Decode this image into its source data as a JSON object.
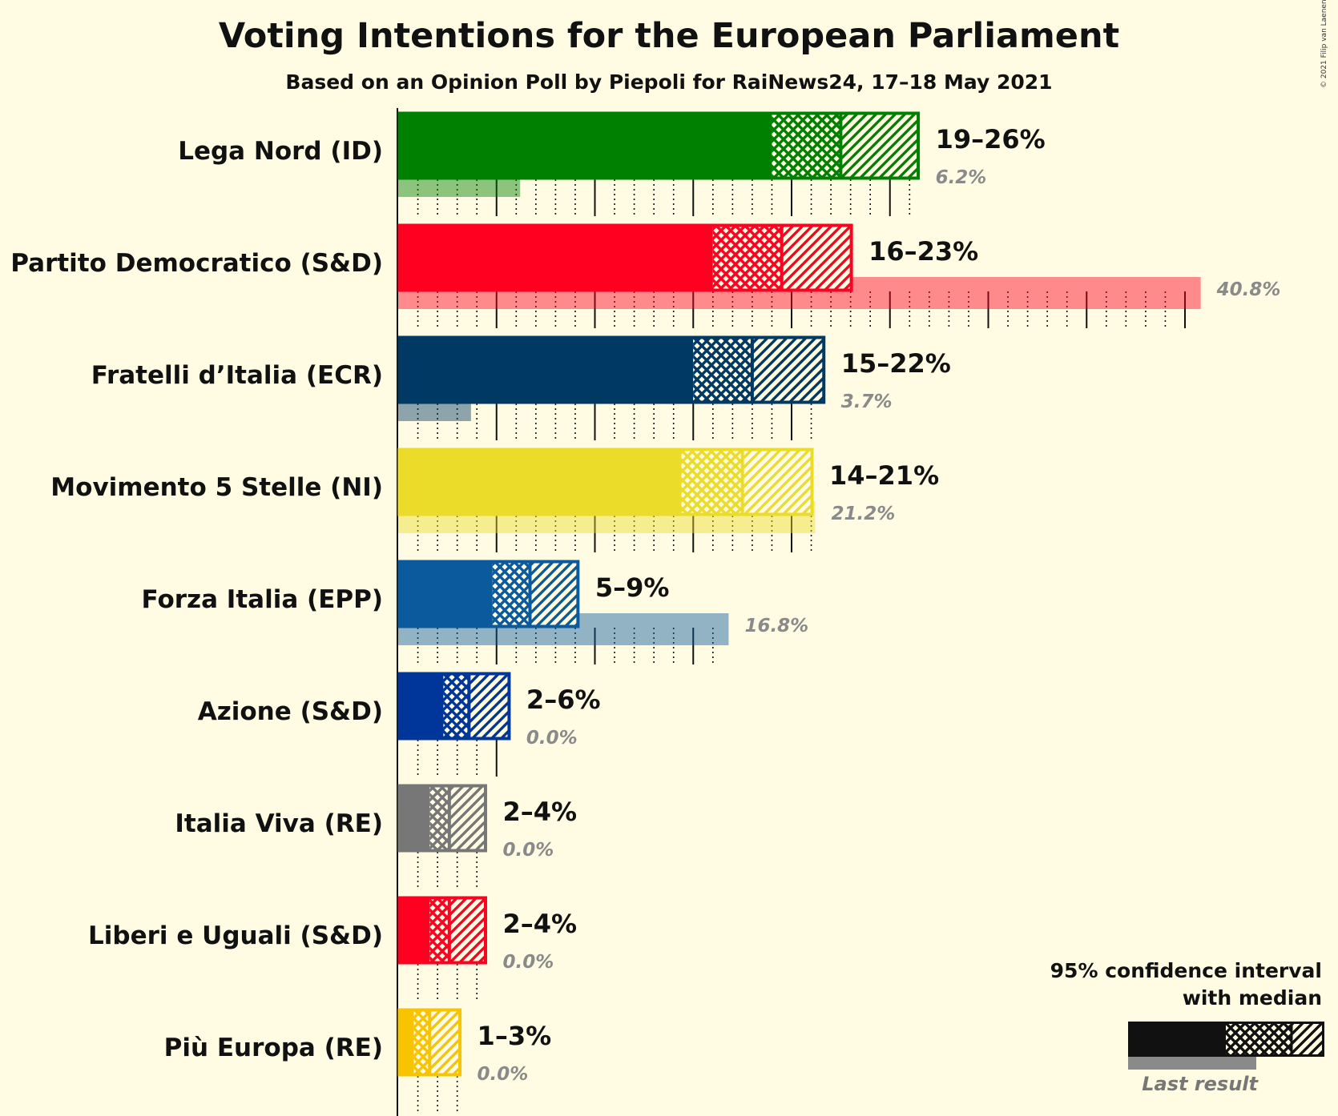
{
  "title": "Voting Intentions for the European Parliament",
  "subtitle": "Based on an Opinion Poll by Piepoli for RaiNews24, 17–18 May 2021",
  "copyright": "© 2021 Filip van Laenen",
  "legend": {
    "title_line1": "95% confidence interval",
    "title_line2": "with median",
    "last_result": "Last result"
  },
  "chart_data": {
    "type": "bar",
    "orientation": "horizontal",
    "xlim": [
      0,
      42
    ],
    "unit": "%",
    "grid": true,
    "parties": [
      {
        "name": "Lega Nord (ID)",
        "color": "#008000",
        "ci_low": 19,
        "median": 22.5,
        "ci_high": 26.5,
        "range_label": "19–26%",
        "last_result": 6.2,
        "last_label": "6.2%"
      },
      {
        "name": "Partito Democratico (S&D)",
        "color": "#FF0020",
        "ci_low": 16,
        "median": 19.5,
        "ci_high": 23.1,
        "range_label": "16–23%",
        "last_result": 40.8,
        "last_label": "40.8%"
      },
      {
        "name": "Fratelli d’Italia (ECR)",
        "color": "#003963",
        "ci_low": 15,
        "median": 18,
        "ci_high": 21.7,
        "range_label": "15–22%",
        "last_result": 3.7,
        "last_label": "3.7%"
      },
      {
        "name": "Movimento 5 Stelle (NI)",
        "color": "#ECDC2A",
        "ci_low": 14.4,
        "median": 17.5,
        "ci_high": 21.1,
        "range_label": "14–21%",
        "last_result": 21.2,
        "last_label": "21.2%"
      },
      {
        "name": "Forza Italia (EPP)",
        "color": "#0B5A9E",
        "ci_low": 4.8,
        "median": 6.7,
        "ci_high": 9.2,
        "range_label": "5–9%",
        "last_result": 16.8,
        "last_label": "16.8%"
      },
      {
        "name": "Azione (S&D)",
        "color": "#00359A",
        "ci_low": 2.3,
        "median": 3.6,
        "ci_high": 5.7,
        "range_label": "2–6%",
        "last_result": 0,
        "last_label": "0.0%"
      },
      {
        "name": "Italia Viva (RE)",
        "color": "#777777",
        "ci_low": 1.6,
        "median": 2.6,
        "ci_high": 4.5,
        "range_label": "2–4%",
        "last_result": 0,
        "last_label": "0.0%"
      },
      {
        "name": "Liberi e Uguali (S&D)",
        "color": "#FF0020",
        "ci_low": 1.6,
        "median": 2.6,
        "ci_high": 4.5,
        "range_label": "2–4%",
        "last_result": 0,
        "last_label": "0.0%"
      },
      {
        "name": "Più Europa (RE)",
        "color": "#F8C300",
        "ci_low": 0.8,
        "median": 1.6,
        "ci_high": 3.2,
        "range_label": "1–3%",
        "last_result": 0,
        "last_label": "0.0%"
      }
    ]
  }
}
